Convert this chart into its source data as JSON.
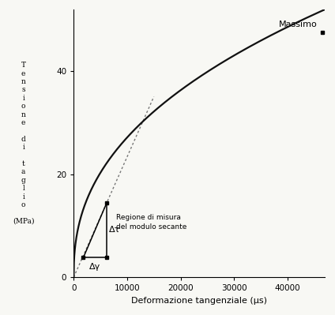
{
  "xlabel": "Deformazione tangenziale (μs)",
  "ylabel_chars": [
    "T",
    "e",
    "n",
    "s",
    "i",
    "o",
    "n",
    "e",
    " ",
    "d",
    "i",
    " ",
    "t",
    "a",
    "g",
    "l",
    "i",
    "o",
    " ",
    "(MPa)"
  ],
  "xlim": [
    0,
    47000
  ],
  "ylim": [
    0,
    52
  ],
  "yticks": [
    0,
    20,
    40
  ],
  "xticks": [
    0,
    10000,
    20000,
    30000,
    40000
  ],
  "xtick_labels": [
    "0",
    "10000",
    "20000",
    "30000",
    "40000"
  ],
  "curve_color": "#111111",
  "tangent_color": "#777777",
  "bg_color": "#f8f8f4",
  "massimo_label": "Massimo",
  "massimo_x": 46500,
  "massimo_y": 47.5,
  "delta_tau_label": "Δτ",
  "delta_gamma_label": "Δγ",
  "secant_region_label1": "Regione di misura",
  "secant_region_label2": "del modulo secante",
  "pt1_x": 1800,
  "pt1_y": 3.8,
  "pt2_x": 6200,
  "pt2_y": 14.5,
  "tangent_x_end": 15000,
  "power_alpha": 0.42,
  "tau_scale": 52.0,
  "gamma_ref": 47000
}
